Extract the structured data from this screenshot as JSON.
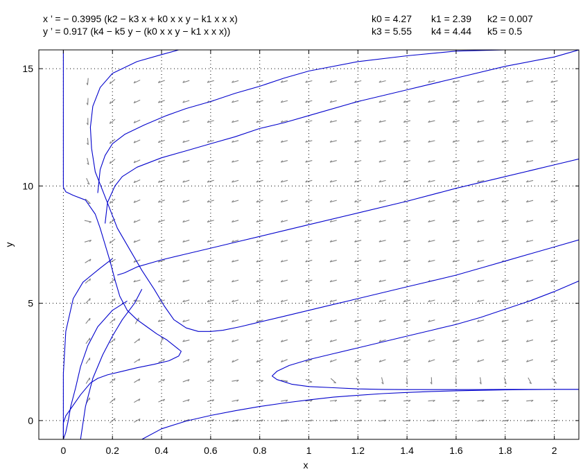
{
  "equations": {
    "x_eq": "x ’ = − 0.3995 (k2 − k3 x + k0 x x y − k1 x x x)",
    "y_eq": "y ’ = 0.917 (k4 − k5 y − (k0 x x y − k1 x x x))"
  },
  "parameters": {
    "row1": [
      "k0 = 4.27",
      "k1 = 2.39",
      "k2 = 0.007"
    ],
    "row2": [
      "k3 = 5.55",
      "k4 = 4.44",
      "k5 = 0.5"
    ]
  },
  "chart_data": {
    "type": "line",
    "title": "",
    "xlabel": "x",
    "ylabel": "y",
    "xlim": [
      -0.1,
      2.1
    ],
    "ylim": [
      -0.8,
      15.8
    ],
    "x_ticks": [
      "0",
      "0.2",
      "0.4",
      "0.6",
      "0.8",
      "1",
      "1.2",
      "1.4",
      "1.6",
      "1.8",
      "2"
    ],
    "y_ticks": [
      "0",
      "5",
      "10",
      "15"
    ],
    "grid": true,
    "direction_field": true,
    "colors": {
      "trajectory": "#0000cc",
      "field": "#808080",
      "grid": "#000000"
    },
    "series": [
      {
        "x": [
          0.0,
          0.0,
          0.0,
          0.0,
          0.0,
          0.0,
          0.01,
          0.04,
          0.09,
          0.13,
          0.15,
          0.17,
          0.19,
          0.21,
          0.23,
          0.26,
          0.3,
          0.34,
          0.38,
          0.42,
          0.45,
          0.48,
          0.47,
          0.43,
          0.37,
          0.3,
          0.24,
          0.18,
          0.14,
          0.11,
          0.09,
          0.07,
          0.05,
          0.03,
          0.01,
          0.0,
          0.0,
          0.0,
          0.0
        ],
        "y": [
          15.8,
          14.0,
          12.0,
          11.0,
          10.2,
          9.95,
          9.75,
          9.6,
          9.4,
          8.8,
          8.2,
          7.5,
          6.8,
          6.0,
          5.3,
          4.7,
          4.3,
          4.0,
          3.7,
          3.45,
          3.2,
          2.95,
          2.75,
          2.55,
          2.4,
          2.25,
          2.1,
          1.95,
          1.8,
          1.6,
          1.35,
          1.1,
          0.8,
          0.5,
          0.2,
          -0.1,
          -0.4,
          -0.6,
          -0.8
        ]
      },
      {
        "x": [
          0.47,
          0.4,
          0.3,
          0.2,
          0.15,
          0.12,
          0.11,
          0.115,
          0.13,
          0.16,
          0.19,
          0.22,
          0.27,
          0.32,
          0.37,
          0.41,
          0.45,
          0.5,
          0.55,
          0.6,
          0.65,
          0.72,
          0.8,
          0.9,
          1.0,
          1.1,
          1.2,
          1.3,
          1.4,
          1.5,
          1.6,
          1.7,
          1.8,
          1.9,
          2.0,
          2.1
        ],
        "y": [
          15.8,
          15.6,
          15.3,
          14.8,
          14.2,
          13.4,
          12.5,
          11.6,
          10.6,
          9.8,
          9.0,
          8.2,
          7.3,
          6.4,
          5.6,
          4.9,
          4.3,
          3.95,
          3.8,
          3.8,
          3.85,
          4.0,
          4.2,
          4.45,
          4.7,
          4.95,
          5.2,
          5.45,
          5.7,
          5.95,
          6.2,
          6.5,
          6.8,
          7.1,
          7.4,
          7.7
        ]
      },
      {
        "x": [
          0.17,
          0.18,
          0.21,
          0.24,
          0.3,
          0.4,
          0.5,
          0.6,
          0.7,
          0.8,
          0.9,
          1.0,
          1.2,
          1.4,
          1.6,
          1.8,
          2.0,
          2.1
        ],
        "y": [
          8.4,
          9.3,
          10.0,
          10.4,
          10.8,
          11.2,
          11.5,
          11.8,
          12.1,
          12.45,
          12.7,
          13.0,
          13.6,
          14.1,
          14.6,
          15.1,
          15.5,
          15.8
        ]
      },
      {
        "x": [
          0.14,
          0.15,
          0.17,
          0.2,
          0.25,
          0.33,
          0.42,
          0.5,
          0.6,
          0.7,
          0.8,
          0.9,
          1.0,
          1.2,
          1.4,
          1.6,
          1.8,
          2.0,
          2.1
        ],
        "y": [
          9.7,
          10.7,
          11.3,
          11.8,
          12.2,
          12.6,
          13.0,
          13.3,
          13.6,
          13.95,
          14.25,
          14.6,
          14.9,
          15.3,
          15.55,
          15.75,
          15.8,
          15.8,
          15.8
        ]
      },
      {
        "x": [
          0.22,
          0.25,
          0.3,
          0.4,
          0.5,
          0.6,
          0.7,
          0.8,
          0.9,
          1.0,
          1.2,
          1.4,
          1.6,
          1.8,
          2.0,
          2.1
        ],
        "y": [
          6.2,
          6.3,
          6.55,
          6.85,
          7.1,
          7.35,
          7.6,
          7.85,
          8.1,
          8.35,
          8.85,
          9.35,
          9.9,
          10.4,
          10.9,
          11.15
        ]
      },
      {
        "x": [
          0.85,
          0.87,
          0.93,
          1.0,
          1.1,
          1.2,
          1.3,
          1.4,
          1.5,
          1.6,
          1.7,
          1.8,
          1.9,
          2.0,
          2.1
        ],
        "y": [
          1.9,
          1.75,
          1.55,
          1.45,
          1.4,
          1.35,
          1.33,
          1.32,
          1.32,
          1.32,
          1.32,
          1.33,
          1.33,
          1.33,
          1.33
        ]
      },
      {
        "x": [
          0.85,
          0.87,
          0.92,
          1.0,
          1.1,
          1.2,
          1.3,
          1.4,
          1.5,
          1.6,
          1.7,
          1.8,
          1.9,
          2.0,
          2.1
        ],
        "y": [
          1.9,
          2.1,
          2.35,
          2.6,
          2.85,
          3.1,
          3.35,
          3.6,
          3.85,
          4.1,
          4.4,
          4.75,
          5.1,
          5.5,
          5.95
        ]
      },
      {
        "x": [
          0.2,
          0.15,
          0.08,
          0.04,
          0.01,
          0.0,
          0.0,
          0.0
        ],
        "y": [
          6.9,
          6.5,
          5.9,
          5.2,
          3.8,
          2.0,
          0.5,
          -0.8
        ]
      },
      {
        "x": [
          0.26,
          0.2,
          0.14,
          0.1,
          0.07,
          0.05,
          0.03,
          0.02,
          0.01,
          0.0
        ],
        "y": [
          5.1,
          4.7,
          4.0,
          3.2,
          2.3,
          1.4,
          0.6,
          0.0,
          -0.5,
          -0.8
        ]
      },
      {
        "x": [
          0.32,
          0.29,
          0.24,
          0.2,
          0.16,
          0.12,
          0.09,
          0.07
        ],
        "y": [
          5.6,
          5.0,
          4.3,
          3.6,
          2.8,
          1.8,
          0.6,
          -0.8
        ]
      },
      {
        "x": [
          0.32,
          0.4,
          0.5,
          0.6,
          0.7,
          0.8,
          0.9,
          1.0,
          1.1,
          1.2,
          1.3,
          1.4,
          1.5,
          1.6,
          1.7,
          1.8,
          1.9,
          2.0,
          2.1
        ],
        "y": [
          -0.8,
          -0.35,
          -0.02,
          0.22,
          0.42,
          0.6,
          0.75,
          0.88,
          1.0,
          1.08,
          1.15,
          1.2,
          1.24,
          1.27,
          1.29,
          1.31,
          1.32,
          1.33,
          1.33
        ]
      }
    ]
  }
}
